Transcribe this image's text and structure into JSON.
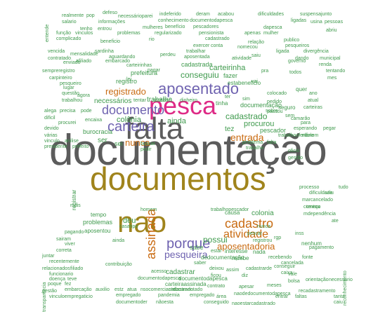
{
  "cloud": {
    "documentacao": "documentação",
    "documentos": "documentos",
    "falta": "falta",
    "nao": "nao",
    "pesca": "pesca",
    "aposentado": "aposentado",
    "documento": "documento",
    "carteira": "carteira",
    "porque": "porque",
    "cadastro": "cadastro",
    "assinada": "assinada",
    "atividade": "atividade",
    "pesqueira": "pesqueira",
    "aposentadoria": "aposentadoria",
    "registrado": "registrado",
    "nunca": "nunca",
    "entrada": "entrada",
    "colonia": "colônia",
    "conseguiu": "conseguiu",
    "cadastrado": "cadastrado",
    "procurou": "procurou",
    "carteirinha": "carteirinha",
    "necessarios": "necessários",
    "ainda": "ainda",
    "trabalha": "trabalha",
    "possui": "possui",
    "deu": "deu",
    "tempo": "tempo",
    "problemas": "problemas",
    "cadastrar": "cadastrar",
    "colonia2": "colonia",
    "prefeitura": "prefeitura",
    "registro": "registro",
    "beneficio": "beneficio",
    "seguro": "seguro",
    "pescador": "pescador",
    "tez": "tez",
    "ser": "ser",
    "sei": "sei",
    "documentacao_small": "documentação",
    "burocracia": "burocracia",
    "fazer": "fazer",
    "tinha": "tinha",
    "nenhum": "nenhum",
    "sabe": "sabe",
    "esta": "esta",
    "quer": "quer",
    "registrar": "registrar",
    "nada": "nada",
    "carteiraassinada": "carteiraassinada",
    "documentodapesca": "documentodapesca",
    "interesse": "interesse",
    "recebe": "recebe",
    "conseguir": "conseguir",
    "naodedocumentodapesca": "naodedocumentodapesca",
    "encaixa": "encaixa",
    "tipo": "tipo",
    "caixa": "caixa",
    "orientacao": "orientação",
    "acesso": "acesso",
    "pagar": "pagar",
    "contrato": "contrato",
    "necessario": "necessario",
    "empregado": "empregado",
    "pandemia": "pandemia",
    "documentodasapesca": "documentodapesca",
    "apesar": "apesar",
    "sobre": "sobre",
    "ter": "ter",
    "vai": "vai",
    "sim": "sim",
    "aposentou": "aposentou",
    "alega": "alega",
    "precisa": "precisa",
    "pode": "pode",
    "dificil": "dificil",
    "procurei": "procurei",
    "vinculo": "vinculo",
    "anilise": "anilise",
    "presidente": "presidente",
    "prefeito": "prefeito",
    "varias": "várias",
    "devido": "devido",
    "falta_small": "falta",
    "trabalho": "trabalho",
    "oficio": "oficio",
    "gestao": "gestão",
    "indeferido": "indeferido",
    "deram": "deram",
    "acabou": "acabou",
    "dificuldades": "dificuldades",
    "suspensajunto": "suspensajunto",
    "realmente": "realmente",
    "pop": "pop",
    "defeso": "defeso",
    "necessarioparei": "necessárioparei",
    "informacoes": "informações",
    "conhecimento": "conhecimento",
    "documentodapesca_top": "documentodapesca",
    "ligadas": "ligadas",
    "usina": "usina",
    "pessoas": "pessoas",
    "salario": "salario",
    "tenho": "tenho",
    "entrou": "entrou",
    "beneficio_top": "benefício",
    "pescadores": "pescadores",
    "dapesca": "dapesca",
    "apenas": "apenas",
    "mulher": "mulher",
    "abriu": "abriu",
    "funcao": "função",
    "vinculos": "vinculos",
    "problemas_top": "problemas",
    "regularizado": "regularizado",
    "pensionista": "pensionista",
    "relacao": "relação",
    "complicado": "complicado",
    "beneficio_2": "beneficio",
    "publico": "publico",
    "dando": "dando",
    "municipal": "municipal",
    "cadastrado_top": "cadastrado",
    "rio": "rio",
    "vencida": "vencida",
    "mensalidade": "mensalidade",
    "aguardando": "aguardando",
    "aposentada": "aposentada",
    "exercer": "exercer",
    "trabalhar": "trabalhar",
    "ligada": "ligada",
    "divergencia": "divergência",
    "contratado": "contratado",
    "afiliado": "afiliado",
    "perdeu": "perdeu",
    "governo": "governo",
    "renda": "renda",
    "tentando": "tentando",
    "semprepregistro": "sempreregistro",
    "conta": "conta",
    "saiu": "saiu",
    "mes": "mes",
    "relacionados": "relacionados",
    "gestao_bottom": "gestão",
    "transparencia": "transparência",
    "vinculoempregaticio": "vinculoempregaticio",
    "embarcacao": "embarcação",
    "auxilio": "auxilio",
    "estz": "estz",
    "atua": "atua",
    "nsocomerciante": "nsocomerciante",
    "naoestarcadastrado": "naoestarcadastrado",
    "documentoder": "documentoder",
    "naoesta": "nãoesta",
    "conseguido": "conseguido",
    "poque": "poque",
    "fez": "fez",
    "reconhecimento": "reconhecimento",
    "recadastramento": "recadastramento",
    "tanta": "tanta",
    "caiu": "caiu",
    "bolsa": "bolsa",
    "cadastrado_bottom": "cadastrado",
    "empregado_bottom": "empregado",
    "area": "área",
    "entrar": "entrar",
    "faltas": "faltas",
    "processo": "processo",
    "dificuldade": "dificuldade",
    "saiu_right": "saiu",
    "tudo": "tudo",
    "marcancelado": "marcancelado",
    "comeco": "começo",
    "mdependencia": "mdependência",
    "ate": "ate",
    "pagando": "pagando",
    "contribuicao": "contribuição",
    "viver": "viver",
    "sairam": "sairam",
    "juntar": "juntar",
    "recentemente": "recentemente",
    "funcionario": "funcionario",
    "doenca": "doença",
    "filiado": "filiado",
    "teve": "teve",
    "trabalhopescador": "trabalhopescador",
    "trabalhoofertario": "trabalhoofertário",
    "problema": "problema",
    "colocado": "colocado",
    "pedido": "pedido",
    "tentou": "tentou",
    "mais": "mais",
    "causa": "causa",
    "pescar": "pescar",
    "registrou": "registrou",
    "pagamento": "pagamento",
    "estar": "estar",
    "cancelada": "cancelada",
    "dedocumentacao": "dedocumentação",
    "recebendo": "recebendo",
    "fonte": "fonte",
    "saber": "saber",
    "documentado": "documentado",
    "correta": "correta",
    "agora": "agora",
    "ano": "ano",
    "ainda_small": "ainda",
    "nunca_small": "nunca",
    "questao": "questão",
    "trabalhou": "trabalhou",
    "lugar": "lugar",
    "sem": "sem",
    "para": "para",
    "meses": "meses",
    "vale": "vale",
    "todos": "todos",
    "esperando": "esperando",
    "pegar": "pegar",
    "camarao": "camarão",
    "atual": "atual",
    "carteiras": "carteiras",
    "pedir": "pedir",
    "naotem": "nãotem",
    "tentar": "tentar",
    "receber": "receber",
    "buscar": "buscar",
    "dinheiro": "dinheiro",
    "casa": "casa",
    "assim": "assim",
    "passou": "passou",
    "homem": "homem",
    "pesqueiros": "pesqueiros",
    "nomecou": "nomecou",
    "enviado": "enviado",
    "embarcado": "embarcado",
    "atividade_small": "atividade",
    "cadastrarde": "cadastrarde",
    "deixou": "deixou",
    "diz": "diz",
    "rgp": "rgp",
    "ficou": "ficou",
    "inss": "inss",
    "pesqueiro": "pesqueiro",
    "carpinteiro": "carpinteiro",
    "mulheres": "mulheres",
    "sardinha": "sardinha",
    "cadastrada": "cadastrada",
    "carteirinhas": "carteirinhas",
    "entende": "entende",
    "lei": "lei",
    "pra": "pra"
  }
}
